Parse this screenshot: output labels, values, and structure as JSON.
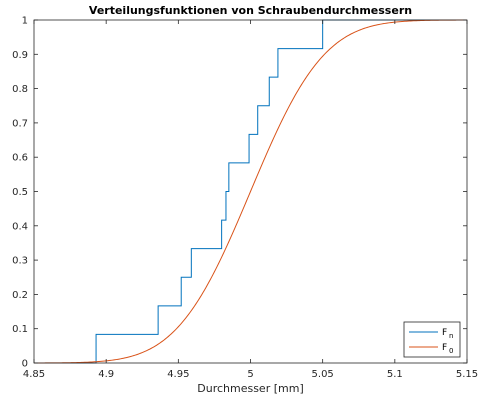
{
  "chart_data": {
    "type": "line",
    "title": "Verteilungsfunktionen von Schraubendurchmessern",
    "xlabel": "Durchmesser [mm]",
    "ylabel": "",
    "xlim": [
      4.85,
      5.15
    ],
    "ylim": [
      0,
      1
    ],
    "xticks": [
      "4.85",
      "4.9",
      "4.95",
      "5",
      "5.05",
      "5.1",
      "5.15"
    ],
    "yticks": [
      "0",
      "0.1",
      "0.2",
      "0.3",
      "0.4",
      "0.5",
      "0.6",
      "0.7",
      "0.8",
      "0.9",
      "1"
    ],
    "xtick_values": [
      4.85,
      4.9,
      4.95,
      5.0,
      5.05,
      5.1,
      5.15
    ],
    "ytick_values": [
      0,
      0.1,
      0.2,
      0.3,
      0.4,
      0.5,
      0.6,
      0.7,
      0.8,
      0.9,
      1.0
    ],
    "grid": false,
    "legend_position": "bottom-right",
    "series": [
      {
        "name": "F",
        "subscript": "n",
        "kind": "step",
        "color": "#0072BD",
        "steps_x": [
          4.893,
          4.936,
          4.945,
          4.952,
          4.959,
          4.98,
          4.983,
          4.985,
          4.999,
          5.005,
          5.013,
          5.019,
          5.05
        ],
        "steps_y": [
          0.0833,
          0.1667,
          0.1667,
          0.25,
          0.3333,
          0.4167,
          0.5,
          0.5833,
          0.6667,
          0.75,
          0.8333,
          0.9167,
          1.0
        ]
      },
      {
        "name": "F",
        "subscript": "0",
        "kind": "normal_cdf",
        "color": "#D95319",
        "mean": 5.0,
        "std": 0.04
      }
    ]
  }
}
